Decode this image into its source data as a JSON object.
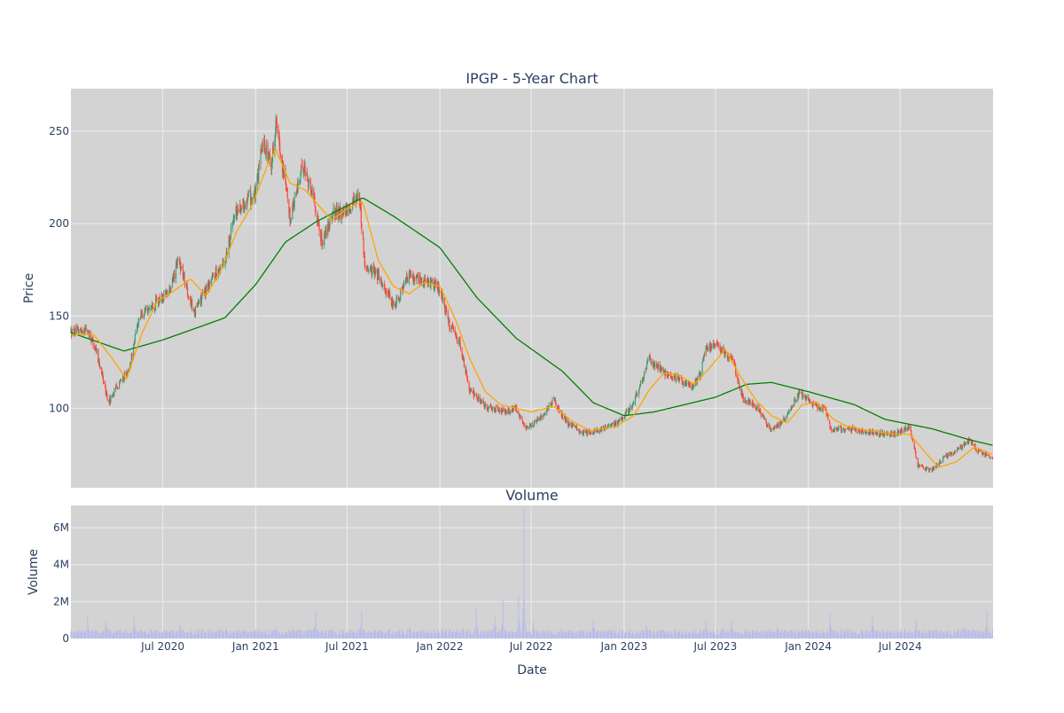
{
  "chart_data": [
    {
      "type": "candlestick",
      "title": "IPGP - 5-Year Chart",
      "ylabel": "Price",
      "ylim": [
        57,
        273
      ],
      "yticks": [
        100,
        150,
        200,
        250
      ],
      "xlim": [
        "2020-01-01",
        "2025-01-01"
      ],
      "xticks": [
        "2020-07-01",
        "2021-01-01",
        "2021-07-01",
        "2022-01-01",
        "2022-07-01",
        "2023-01-01",
        "2023-07-01",
        "2024-01-01",
        "2024-07-01"
      ],
      "xtick_labels": [
        "Jul 2020",
        "Jan 2021",
        "Jul 2021",
        "Jan 2022",
        "Jul 2022",
        "Jan 2023",
        "Jul 2023",
        "Jan 2024",
        "Jul 2024"
      ],
      "grid": true,
      "colors": {
        "plot_bg": "#d3d3d3",
        "grid": "#e8eef5",
        "up": "#3d9970",
        "down": "#ff4136",
        "ma_short": "#ffa500",
        "ma_long": "#008000"
      },
      "price_anchors": [
        [
          "2020-01-01",
          141
        ],
        [
          "2020-02-01",
          143
        ],
        [
          "2020-02-20",
          132
        ],
        [
          "2020-03-15",
          103
        ],
        [
          "2020-04-01",
          112
        ],
        [
          "2020-04-25",
          120
        ],
        [
          "2020-05-15",
          150
        ],
        [
          "2020-06-20",
          158
        ],
        [
          "2020-07-15",
          163
        ],
        [
          "2020-08-01",
          181
        ],
        [
          "2020-09-01",
          152
        ],
        [
          "2020-10-01",
          168
        ],
        [
          "2020-11-01",
          180
        ],
        [
          "2020-11-20",
          205
        ],
        [
          "2020-12-15",
          213
        ],
        [
          "2021-01-01",
          216
        ],
        [
          "2021-01-15",
          245
        ],
        [
          "2021-02-01",
          232
        ],
        [
          "2021-02-10",
          255
        ],
        [
          "2021-02-25",
          228
        ],
        [
          "2021-03-10",
          203
        ],
        [
          "2021-04-05",
          232
        ],
        [
          "2021-04-25",
          215
        ],
        [
          "2021-05-12",
          190
        ],
        [
          "2021-06-01",
          205
        ],
        [
          "2021-07-01",
          207
        ],
        [
          "2021-07-25",
          217
        ],
        [
          "2021-08-05",
          178
        ],
        [
          "2021-09-01",
          172
        ],
        [
          "2021-10-01",
          155
        ],
        [
          "2021-11-01",
          172
        ],
        [
          "2021-12-10",
          168
        ],
        [
          "2022-01-01",
          165
        ],
        [
          "2022-01-20",
          145
        ],
        [
          "2022-02-10",
          135
        ],
        [
          "2022-03-01",
          110
        ],
        [
          "2022-04-01",
          101
        ],
        [
          "2022-05-10",
          98
        ],
        [
          "2022-06-01",
          100
        ],
        [
          "2022-06-20",
          88
        ],
        [
          "2022-07-15",
          94
        ],
        [
          "2022-08-15",
          104
        ],
        [
          "2022-09-10",
          92
        ],
        [
          "2022-10-10",
          87
        ],
        [
          "2022-11-15",
          88
        ],
        [
          "2022-12-20",
          92
        ],
        [
          "2023-01-15",
          101
        ],
        [
          "2023-02-01",
          112
        ],
        [
          "2023-02-20",
          127
        ],
        [
          "2023-03-15",
          120
        ],
        [
          "2023-04-10",
          117
        ],
        [
          "2023-05-15",
          112
        ],
        [
          "2023-06-01",
          118
        ],
        [
          "2023-06-10",
          132
        ],
        [
          "2023-07-05",
          134
        ],
        [
          "2023-08-05",
          125
        ],
        [
          "2023-08-25",
          105
        ],
        [
          "2023-09-20",
          101
        ],
        [
          "2023-10-20",
          88
        ],
        [
          "2023-11-15",
          94
        ],
        [
          "2023-12-15",
          109
        ],
        [
          "2024-01-15",
          101
        ],
        [
          "2024-02-05",
          99
        ],
        [
          "2024-02-15",
          88
        ],
        [
          "2024-03-15",
          89
        ],
        [
          "2024-05-01",
          87
        ],
        [
          "2024-06-20",
          86
        ],
        [
          "2024-07-20",
          90
        ],
        [
          "2024-08-05",
          69
        ],
        [
          "2024-09-01",
          66
        ],
        [
          "2024-09-25",
          73
        ],
        [
          "2024-10-25",
          78
        ],
        [
          "2024-11-15",
          83
        ],
        [
          "2024-12-01",
          77
        ],
        [
          "2024-12-31",
          73
        ]
      ],
      "ma_short_anchors": [
        [
          "2020-01-01",
          140
        ],
        [
          "2020-02-15",
          140
        ],
        [
          "2020-03-20",
          128
        ],
        [
          "2020-04-20",
          116
        ],
        [
          "2020-05-20",
          140
        ],
        [
          "2020-06-20",
          158
        ],
        [
          "2020-07-20",
          163
        ],
        [
          "2020-08-25",
          170
        ],
        [
          "2020-09-25",
          161
        ],
        [
          "2020-10-25",
          175
        ],
        [
          "2020-11-25",
          196
        ],
        [
          "2020-12-25",
          210
        ],
        [
          "2021-01-25",
          232
        ],
        [
          "2021-02-10",
          240
        ],
        [
          "2021-03-10",
          222
        ],
        [
          "2021-04-10",
          218
        ],
        [
          "2021-05-05",
          210
        ],
        [
          "2021-06-01",
          202
        ],
        [
          "2021-07-01",
          208
        ],
        [
          "2021-08-01",
          212
        ],
        [
          "2021-09-01",
          180
        ],
        [
          "2021-10-01",
          166
        ],
        [
          "2021-11-01",
          162
        ],
        [
          "2021-12-01",
          168
        ],
        [
          "2022-01-01",
          166
        ],
        [
          "2022-02-01",
          148
        ],
        [
          "2022-03-01",
          127
        ],
        [
          "2022-04-01",
          109
        ],
        [
          "2022-05-01",
          102
        ],
        [
          "2022-06-01",
          100
        ],
        [
          "2022-07-01",
          98
        ],
        [
          "2022-08-15",
          101
        ],
        [
          "2022-09-20",
          93
        ],
        [
          "2022-10-25",
          88
        ],
        [
          "2022-12-15",
          90
        ],
        [
          "2023-01-20",
          96
        ],
        [
          "2023-02-20",
          110
        ],
        [
          "2023-03-20",
          119
        ],
        [
          "2023-04-20",
          118
        ],
        [
          "2023-05-20",
          113
        ],
        [
          "2023-06-20",
          122
        ],
        [
          "2023-07-20",
          132
        ],
        [
          "2023-08-20",
          117
        ],
        [
          "2023-09-20",
          104
        ],
        [
          "2023-10-20",
          96
        ],
        [
          "2023-11-20",
          92
        ],
        [
          "2023-12-20",
          102
        ],
        [
          "2024-01-20",
          103
        ],
        [
          "2024-02-20",
          94
        ],
        [
          "2024-03-20",
          90
        ],
        [
          "2024-05-01",
          88
        ],
        [
          "2024-06-20",
          86
        ],
        [
          "2024-07-20",
          86
        ],
        [
          "2024-08-20",
          76
        ],
        [
          "2024-09-15",
          68
        ],
        [
          "2024-10-20",
          71
        ],
        [
          "2024-11-25",
          79
        ],
        [
          "2024-12-31",
          75
        ]
      ],
      "ma_long_anchors": [
        [
          "2020-01-01",
          141
        ],
        [
          "2020-04-15",
          131
        ],
        [
          "2020-07-01",
          137
        ],
        [
          "2020-09-01",
          143
        ],
        [
          "2020-11-01",
          149
        ],
        [
          "2021-01-01",
          167
        ],
        [
          "2021-03-01",
          190
        ],
        [
          "2021-05-01",
          201
        ],
        [
          "2021-08-01",
          214
        ],
        [
          "2021-10-01",
          204
        ],
        [
          "2022-01-01",
          187
        ],
        [
          "2022-03-15",
          160
        ],
        [
          "2022-06-01",
          138
        ],
        [
          "2022-09-01",
          120
        ],
        [
          "2022-11-01",
          103
        ],
        [
          "2023-01-01",
          96
        ],
        [
          "2023-03-01",
          98
        ],
        [
          "2023-05-01",
          102
        ],
        [
          "2023-07-01",
          106
        ],
        [
          "2023-09-01",
          113
        ],
        [
          "2023-10-20",
          114
        ],
        [
          "2024-01-01",
          109
        ],
        [
          "2024-04-01",
          102
        ],
        [
          "2024-06-01",
          94
        ],
        [
          "2024-09-01",
          89
        ],
        [
          "2024-11-15",
          83
        ],
        [
          "2024-12-31",
          80
        ]
      ]
    },
    {
      "type": "bar",
      "title": "Volume",
      "xlabel": "Date",
      "ylabel": "Volume",
      "ylim": [
        0,
        7200000
      ],
      "yticks": [
        0,
        2000000,
        4000000,
        6000000
      ],
      "ytick_labels": [
        "0",
        "2M",
        "4M",
        "6M"
      ],
      "xlim": [
        "2020-01-01",
        "2025-01-01"
      ],
      "xticks": [
        "2020-07-01",
        "2021-01-01",
        "2021-07-01",
        "2022-01-01",
        "2022-07-01",
        "2023-01-01",
        "2023-07-01",
        "2024-01-01",
        "2024-07-01"
      ],
      "xtick_labels": [
        "Jul 2020",
        "Jan 2021",
        "Jul 2021",
        "Jan 2022",
        "Jul 2022",
        "Jan 2023",
        "Jul 2023",
        "Jan 2024",
        "Jul 2024"
      ],
      "grid": true,
      "colors": {
        "bar": "#b8bce8",
        "plot_bg": "#d3d3d3"
      },
      "baseline_volume": 350000,
      "spikes": [
        [
          "2020-02-03",
          1200000
        ],
        [
          "2020-03-10",
          900000
        ],
        [
          "2020-05-05",
          1200000
        ],
        [
          "2020-08-04",
          700000
        ],
        [
          "2020-11-03",
          500000
        ],
        [
          "2021-02-09",
          500000
        ],
        [
          "2021-04-30",
          1500000
        ],
        [
          "2021-07-30",
          1500000
        ],
        [
          "2021-11-02",
          600000
        ],
        [
          "2022-02-15",
          600000
        ],
        [
          "2022-03-14",
          1600000
        ],
        [
          "2022-04-20",
          1200000
        ],
        [
          "2022-05-06",
          2100000
        ],
        [
          "2022-06-06",
          2300000
        ],
        [
          "2022-06-17",
          7000000
        ],
        [
          "2022-07-05",
          900000
        ],
        [
          "2022-11-01",
          1000000
        ],
        [
          "2023-02-14",
          700000
        ],
        [
          "2023-06-12",
          1000000
        ],
        [
          "2023-08-02",
          1000000
        ],
        [
          "2023-11-01",
          600000
        ],
        [
          "2024-02-13",
          1400000
        ],
        [
          "2024-05-07",
          1200000
        ],
        [
          "2024-08-02",
          1000000
        ],
        [
          "2024-11-05",
          600000
        ],
        [
          "2024-12-20",
          1500000
        ]
      ]
    }
  ]
}
